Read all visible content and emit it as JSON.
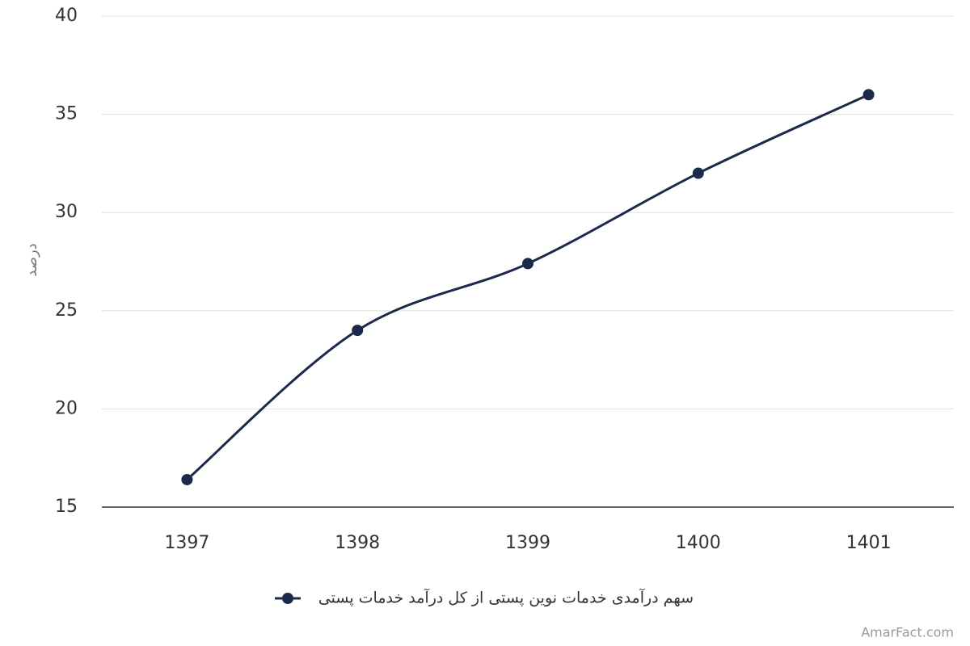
{
  "chart_data": {
    "type": "line",
    "categories": [
      "1397",
      "1398",
      "1399",
      "1400",
      "1401"
    ],
    "series": [
      {
        "name": "سهم درآمدی خدمات نوین پستی از کل درآمد خدمات پستی",
        "color": "#1b2a4a",
        "values": [
          16.4,
          24,
          27.4,
          32,
          36
        ]
      }
    ],
    "y_label": "درصد",
    "ylim": [
      15,
      40
    ],
    "yticks": [
      15,
      20,
      25,
      30,
      35,
      40
    ],
    "grid": true,
    "smooth": true,
    "legend": "bottom",
    "credit": "AmarFact.com"
  }
}
